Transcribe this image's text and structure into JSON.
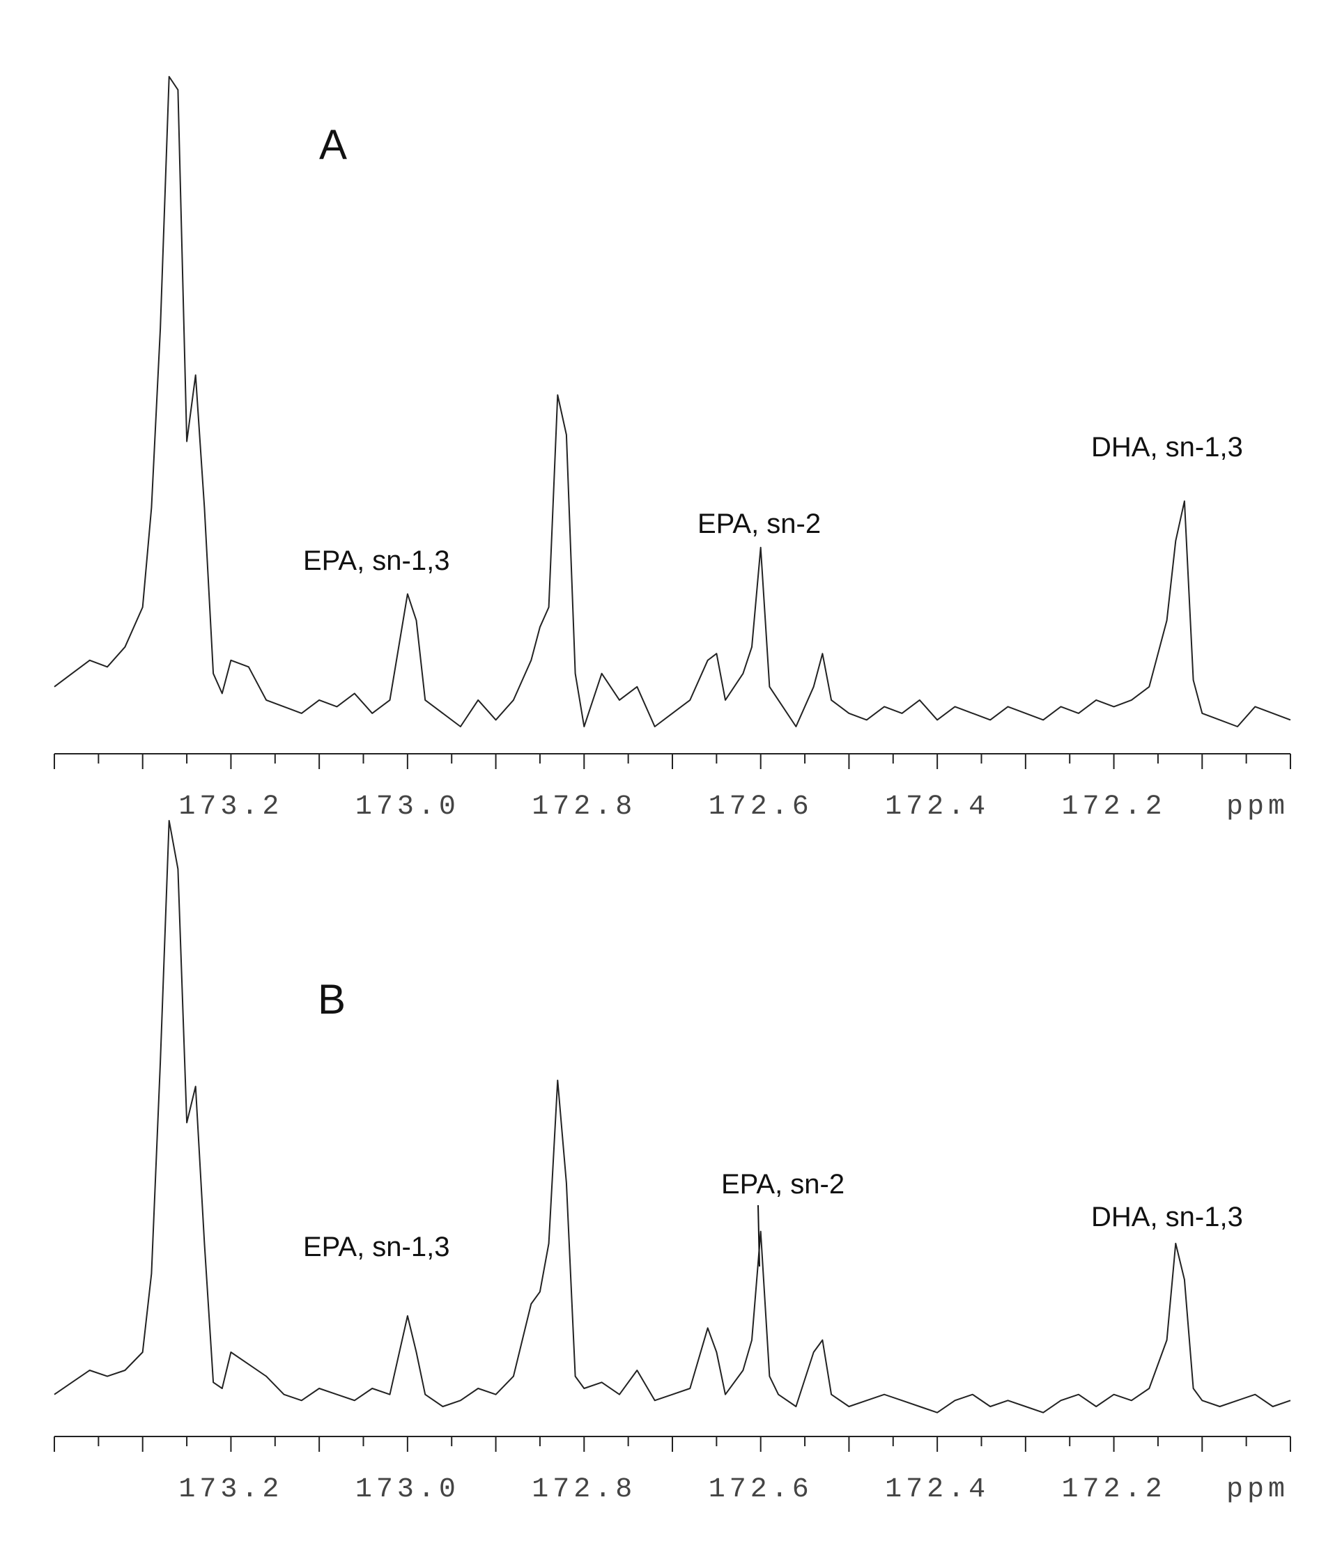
{
  "chart_data": [
    {
      "type": "line",
      "panel_label": "A",
      "xlabel": "ppm",
      "xlim": [
        173.4,
        172.0
      ],
      "x_reversed": true,
      "xticks": [
        "173.2",
        "173.0",
        "172.8",
        "172.6",
        "172.4",
        "172.2"
      ],
      "xtick_values": [
        173.2,
        173.0,
        172.8,
        172.6,
        172.4,
        172.2
      ],
      "ylim": [
        0,
        100
      ],
      "series": [
        {
          "x": [
            173.4,
            173.38,
            173.36,
            173.34,
            173.32,
            173.3,
            173.29,
            173.28,
            173.27,
            173.26,
            173.25,
            173.24,
            173.23,
            173.22,
            173.21,
            173.2,
            173.18,
            173.16,
            173.14,
            173.12,
            173.1,
            173.08,
            173.06,
            173.04,
            173.02,
            173.0,
            172.99,
            172.98,
            172.96,
            172.94,
            172.92,
            172.9,
            172.88,
            172.86,
            172.85,
            172.84,
            172.83,
            172.82,
            172.81,
            172.8,
            172.78,
            172.76,
            172.74,
            172.72,
            172.7,
            172.68,
            172.66,
            172.65,
            172.64,
            172.62,
            172.61,
            172.6,
            172.59,
            172.58,
            172.56,
            172.54,
            172.53,
            172.52,
            172.5,
            172.48,
            172.46,
            172.44,
            172.42,
            172.4,
            172.38,
            172.36,
            172.34,
            172.32,
            172.3,
            172.28,
            172.26,
            172.24,
            172.22,
            172.2,
            172.18,
            172.16,
            172.14,
            172.13,
            172.12,
            172.11,
            172.1,
            172.08,
            172.06,
            172.04,
            172.02,
            172.0
          ],
          "y": [
            8,
            10,
            12,
            11,
            14,
            20,
            35,
            62,
            100,
            98,
            45,
            55,
            35,
            10,
            7,
            12,
            11,
            6,
            5,
            4,
            6,
            5,
            7,
            4,
            6,
            22,
            18,
            6,
            4,
            2,
            6,
            3,
            6,
            12,
            17,
            20,
            52,
            46,
            10,
            2,
            10,
            6,
            8,
            2,
            4,
            6,
            12,
            13,
            6,
            10,
            14,
            29,
            8,
            6,
            2,
            8,
            13,
            6,
            4,
            3,
            5,
            4,
            6,
            3,
            5,
            4,
            3,
            5,
            4,
            3,
            5,
            4,
            6,
            5,
            6,
            8,
            18,
            30,
            36,
            9,
            4,
            3,
            2,
            5,
            4,
            3
          ]
        }
      ],
      "annotations": [
        {
          "text": "EPA, sn-1,3",
          "x": 173.0
        },
        {
          "text": "EPA, sn-2",
          "x": 172.6
        },
        {
          "text": "DHA, sn-1,3",
          "x": 172.12
        }
      ]
    },
    {
      "type": "line",
      "panel_label": "B",
      "xlabel": "ppm",
      "xlim": [
        173.4,
        172.0
      ],
      "x_reversed": true,
      "xticks": [
        "173.2",
        "173.0",
        "172.8",
        "172.6",
        "172.4",
        "172.2"
      ],
      "xtick_values": [
        173.2,
        173.0,
        172.8,
        172.6,
        172.4,
        172.2
      ],
      "ylim": [
        0,
        100
      ],
      "series": [
        {
          "x": [
            173.4,
            173.38,
            173.36,
            173.34,
            173.32,
            173.3,
            173.29,
            173.28,
            173.27,
            173.26,
            173.25,
            173.24,
            173.23,
            173.22,
            173.21,
            173.2,
            173.18,
            173.16,
            173.14,
            173.12,
            173.1,
            173.08,
            173.06,
            173.04,
            173.02,
            173.0,
            172.99,
            172.98,
            172.96,
            172.94,
            172.92,
            172.9,
            172.88,
            172.86,
            172.85,
            172.84,
            172.83,
            172.82,
            172.81,
            172.8,
            172.78,
            172.76,
            172.74,
            172.72,
            172.7,
            172.68,
            172.66,
            172.65,
            172.64,
            172.62,
            172.61,
            172.6,
            172.59,
            172.58,
            172.56,
            172.54,
            172.53,
            172.52,
            172.5,
            172.48,
            172.46,
            172.44,
            172.42,
            172.4,
            172.38,
            172.36,
            172.34,
            172.32,
            172.3,
            172.28,
            172.26,
            172.24,
            172.22,
            172.2,
            172.18,
            172.16,
            172.14,
            172.13,
            172.12,
            172.11,
            172.1,
            172.08,
            172.06,
            172.04,
            172.02,
            172.0
          ],
          "y": [
            5,
            7,
            9,
            8,
            9,
            12,
            25,
            60,
            100,
            92,
            50,
            56,
            30,
            7,
            6,
            12,
            10,
            8,
            5,
            4,
            6,
            5,
            4,
            6,
            5,
            18,
            12,
            5,
            3,
            4,
            6,
            5,
            8,
            20,
            22,
            30,
            57,
            40,
            8,
            6,
            7,
            5,
            9,
            4,
            5,
            6,
            16,
            12,
            5,
            9,
            14,
            32,
            8,
            5,
            3,
            12,
            14,
            5,
            3,
            4,
            5,
            4,
            3,
            2,
            4,
            5,
            3,
            4,
            3,
            2,
            4,
            5,
            3,
            5,
            4,
            6,
            14,
            30,
            24,
            6,
            4,
            3,
            4,
            5,
            3,
            4
          ]
        }
      ],
      "annotations": [
        {
          "text": "EPA, sn-1,3",
          "x": 173.0
        },
        {
          "text": "EPA, sn-2",
          "x": 172.6
        },
        {
          "text": "DHA, sn-1,3",
          "x": 172.12
        }
      ]
    }
  ]
}
